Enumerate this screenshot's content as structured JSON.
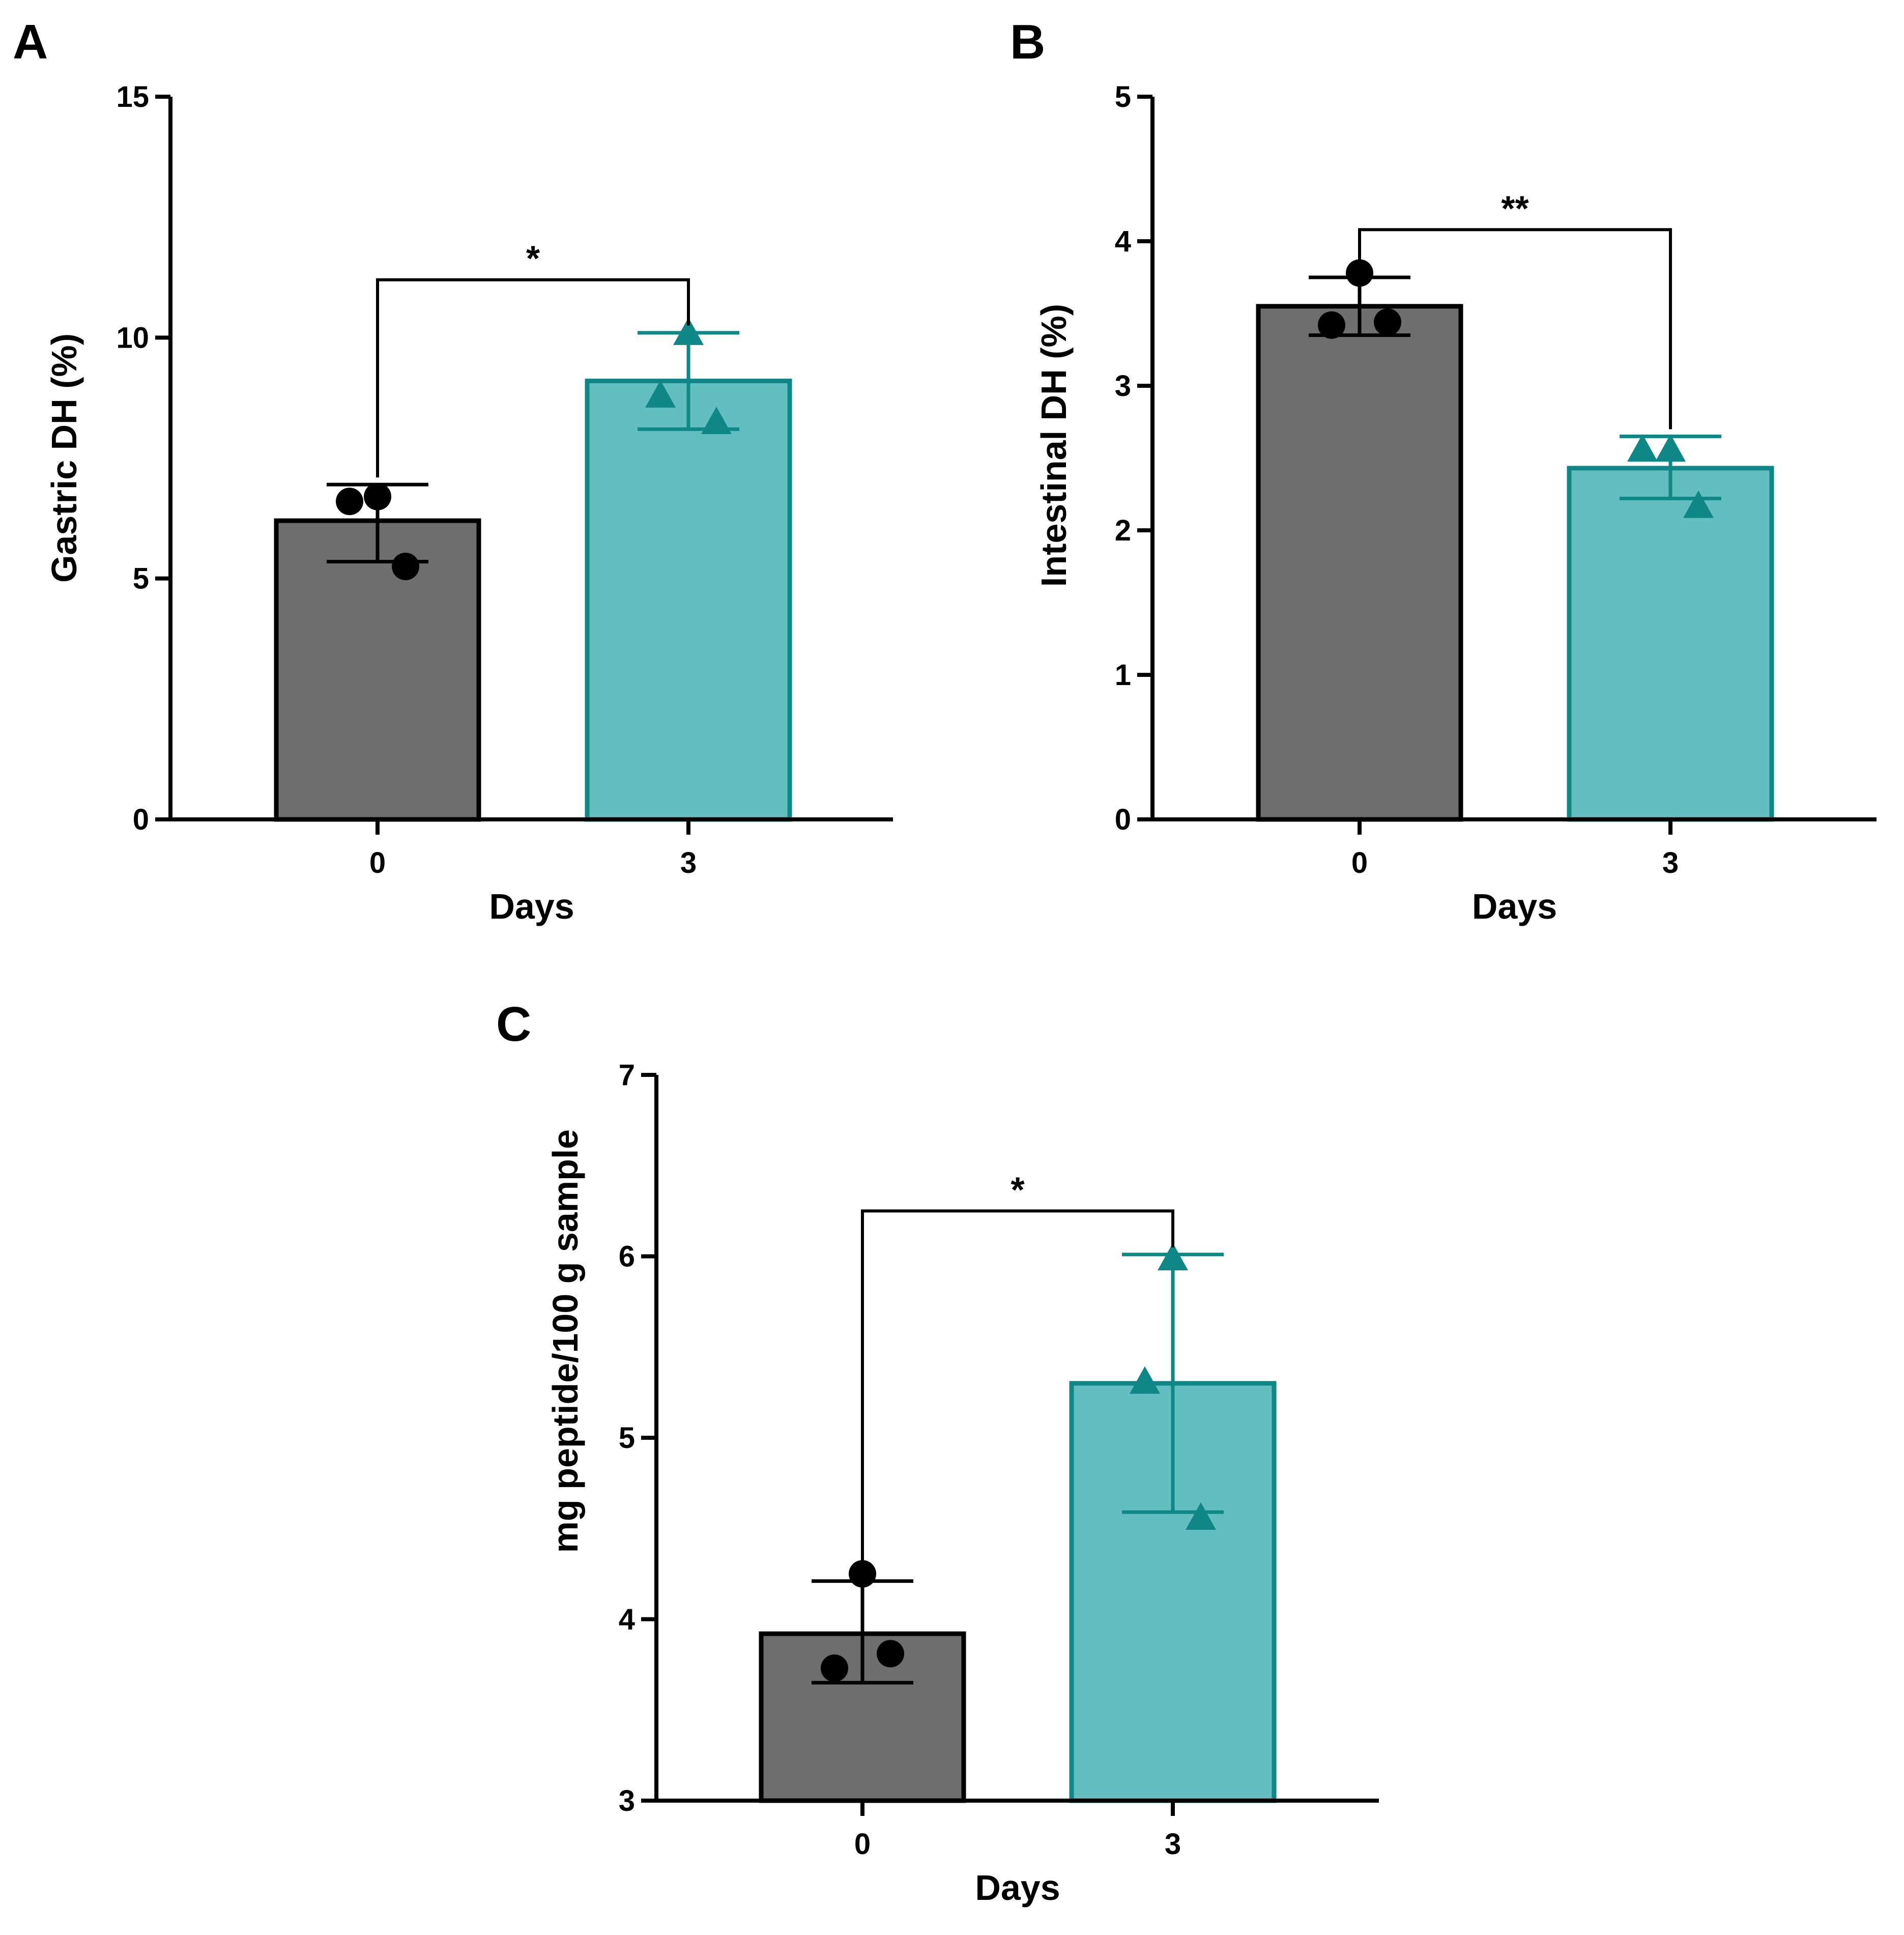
{
  "figure": {
    "colors": {
      "bar_day0_fill": "#6e6e6e",
      "bar_day0_stroke": "#000000",
      "bar_day3_fill": "#63bfbf",
      "bar_day3_stroke": "#0f8787",
      "point_day0": "#000000",
      "point_day3": "#0f8787",
      "axis": "#000000"
    }
  },
  "chart_data": [
    {
      "panel": "A",
      "type": "bar",
      "categories": [
        "0",
        "3"
      ],
      "values": [
        6.2,
        9.1
      ],
      "error": [
        [
          5.35,
          6.95
        ],
        [
          8.1,
          10.1
        ]
      ],
      "points": [
        [
          6.7,
          6.6,
          5.25
        ],
        [
          10.1,
          8.8,
          8.25
        ]
      ],
      "markers": [
        "circle",
        "triangle"
      ],
      "xlabel": "Days",
      "ylabel": "Gastric DH (%)",
      "ylim": [
        0,
        15
      ],
      "yticks": [
        "0",
        "5",
        "10",
        "15"
      ],
      "significance": "*",
      "bracket_value": 11.2
    },
    {
      "panel": "B",
      "type": "bar",
      "categories": [
        "0",
        "3"
      ],
      "values": [
        3.55,
        2.43
      ],
      "error": [
        [
          3.35,
          3.75
        ],
        [
          2.22,
          2.65
        ]
      ],
      "points": [
        [
          3.78,
          3.42,
          3.44
        ],
        [
          2.56,
          2.56,
          2.17
        ]
      ],
      "markers": [
        "circle",
        "triangle"
      ],
      "xlabel": "Days",
      "ylabel": "Intestinal DH (%)",
      "ylim": [
        0,
        5
      ],
      "yticks": [
        "0",
        "1",
        "2",
        "3",
        "4",
        "5"
      ],
      "significance": "**",
      "bracket_value": 4.08
    },
    {
      "panel": "C",
      "type": "bar",
      "categories": [
        "0",
        "3"
      ],
      "values": [
        3.92,
        5.3
      ],
      "error": [
        [
          3.65,
          4.21
        ],
        [
          4.59,
          6.01
        ]
      ],
      "points": [
        [
          4.25,
          3.73,
          3.81
        ],
        [
          5.99,
          5.31,
          4.56
        ]
      ],
      "markers": [
        "circle",
        "triangle"
      ],
      "xlabel": "Days",
      "ylabel": "mg peptide/100 g sample",
      "ylim": [
        3,
        7
      ],
      "yticks": [
        "3",
        "4",
        "5",
        "6",
        "7"
      ],
      "significance": "*",
      "bracket_value": 6.25
    }
  ]
}
